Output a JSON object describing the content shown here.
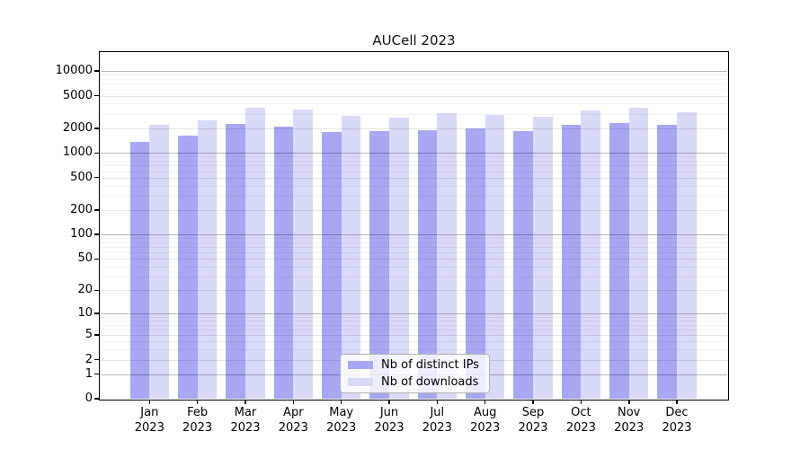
{
  "title": "AUCell 2023",
  "colors": {
    "distinct_ips_bar": "#a7a7f4",
    "downloads_bar": "#d9d9f8",
    "grid_power10": "rgba(0,0,0,0.28)",
    "grid_labeled": "rgba(0,0,0,0.10)",
    "grid_minor": "rgba(0,0,0,0.05)"
  },
  "legend": {
    "items": [
      {
        "label": "Nb of distinct IPs",
        "color": "#a7a7f4"
      },
      {
        "label": "Nb of downloads",
        "color": "#d9d9f8"
      }
    ]
  },
  "chart_data": {
    "type": "bar",
    "title": "AUCell 2023",
    "categories": [
      "Jan",
      "Feb",
      "Mar",
      "Apr",
      "May",
      "Jun",
      "Jul",
      "Aug",
      "Sep",
      "Oct",
      "Nov",
      "Dec"
    ],
    "year": "2023",
    "series": [
      {
        "name": "Nb of distinct IPs",
        "color": "#a7a7f4",
        "values": [
          1350,
          1630,
          2250,
          2110,
          1820,
          1830,
          1910,
          1990,
          1850,
          2180,
          2310,
          2230
        ]
      },
      {
        "name": "Nb of downloads",
        "color": "#d9d9f8",
        "values": [
          2180,
          2520,
          3530,
          3360,
          2810,
          2720,
          3080,
          2890,
          2760,
          3290,
          3580,
          3100
        ]
      }
    ],
    "xlabel": "",
    "ylabel": "",
    "yscale": "log1p",
    "yticks": [
      0,
      1,
      2,
      5,
      10,
      20,
      50,
      100,
      200,
      500,
      1000,
      2000,
      5000,
      10000
    ],
    "ylim": [
      0,
      15000
    ],
    "grid": "on",
    "legend_position": "inside-bottom-center"
  }
}
